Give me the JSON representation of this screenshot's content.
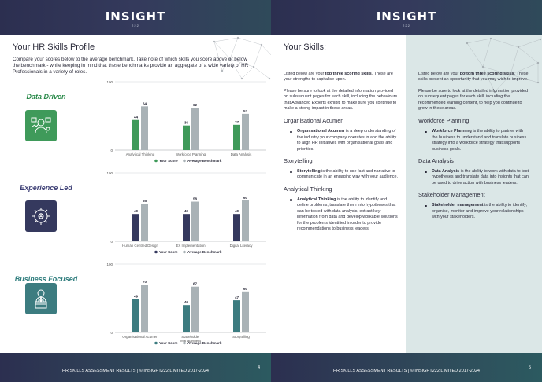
{
  "brand": {
    "logo": "INSIGHT",
    "logo_sub": "222"
  },
  "footer": {
    "text": "HR SKILLS ASSESSMENT RESULTS | © INSIGHT222 LIMITED 2017-2024",
    "page_left": "4",
    "page_right": "5"
  },
  "left": {
    "title": "Your HR Skills Profile",
    "intro": "Compare your scores below to the average benchmark. Take note of which skills you score above or below the benchmark - while keeping in mind that these benchmarks provide an aggregate of a wide variety of HR Professionals in a variety of roles.",
    "sections": [
      {
        "label": "Data Driven",
        "icon": "data-analyst-icon"
      },
      {
        "label": "Experience Led",
        "icon": "experience-gears-icon"
      },
      {
        "label": "Business Focused",
        "icon": "business-person-icon"
      }
    ]
  },
  "colors": {
    "green": "#3f9a5a",
    "purple": "#35395e",
    "teal": "#3c7c80",
    "benchmark": "#a9b2b6"
  },
  "chart_data": [
    {
      "type": "bar",
      "categories": [
        "Analytical Thinking",
        "Workforce Planning",
        "Data Analysis"
      ],
      "series": [
        {
          "name": "Your Score",
          "values": [
            44,
            36,
            37
          ]
        },
        {
          "name": "Average Benchmark",
          "values": [
            64,
            62,
            53
          ]
        }
      ],
      "ylim": [
        0,
        100
      ],
      "yticks": [
        "0",
        "100"
      ],
      "legend": "bottom"
    },
    {
      "type": "bar",
      "categories": [
        "Human Centred Design",
        "EX Implementation",
        "Digital Literacy"
      ],
      "series": [
        {
          "name": "Your Score",
          "values": [
            40,
            40,
            40
          ]
        },
        {
          "name": "Average Benchmark",
          "values": [
            55,
            58,
            60
          ]
        }
      ],
      "ylim": [
        0,
        100
      ],
      "yticks": [
        "0",
        "100"
      ],
      "legend": "bottom"
    },
    {
      "type": "bar",
      "categories": [
        "Organisational Acumen",
        "Stakeholder Management",
        "Storytelling"
      ],
      "series": [
        {
          "name": "Your Score",
          "values": [
            49,
            40,
            47
          ]
        },
        {
          "name": "Average Benchmark",
          "values": [
            70,
            67,
            60
          ]
        }
      ],
      "ylim": [
        0,
        100
      ],
      "yticks": [
        "0",
        "100"
      ],
      "legend": "bottom"
    }
  ],
  "right": {
    "title": "Your Skills:",
    "top": {
      "intro_pre": "Listed below are your ",
      "intro_bold": "top three scoring skills",
      "intro_post": ". These are your strengths to capitalise upon.",
      "note": "Please be sure to look at the detailed information provided on subsequent pages for each skill, including the behaviours that Advanced Experts exhibit, to make sure you continue to make a strong impact in these areas.",
      "skills": [
        {
          "heading": "Organisational Acumen",
          "bold": "Organisational Acumen",
          "text": " is a deep understanding of the industry your company operates in and the ability to align HR initiatives with organisational goals and priorities."
        },
        {
          "heading": "Storytelling",
          "bold": "Storytelling",
          "text": " is the ability to use fact and narrative to communicate in an engaging way with your audience."
        },
        {
          "heading": "Analytical Thinking",
          "bold": "Analytical Thinking",
          "text": " is the ability to identify and define problems, translate them into hypotheses that can be tested with data analysis, extract key information from data and develop workable solutions for the problems identified in order to provide recommendations to business leaders."
        }
      ]
    },
    "bottom": {
      "intro_pre": "Listed below are your ",
      "intro_bold": "bottom three scoring skills",
      "intro_post": ". These skills present an opportunity that you may wish to improve.",
      "note": "Please be sure to look at the detailed information provided on subsequent pages for each skill, including the recommended learning content, to help you continue to grow in these areas.",
      "skills": [
        {
          "heading": "Workforce Planning",
          "bold": "Workforce Planning",
          "text": " is the ability to partner with the business to understand and translate business strategy into a workforce strategy that supports business goals."
        },
        {
          "heading": "Data Analysis",
          "bold": "Data Analysis",
          "text": " is the ability to work with data to test hypotheses and translate data into insights that can be used to drive action with business leaders."
        },
        {
          "heading": "Stakeholder Management",
          "bold": "Stakeholder management",
          "text": " is the ability to identify, organise, monitor and improve your relationships with your stakeholders."
        }
      ]
    }
  }
}
